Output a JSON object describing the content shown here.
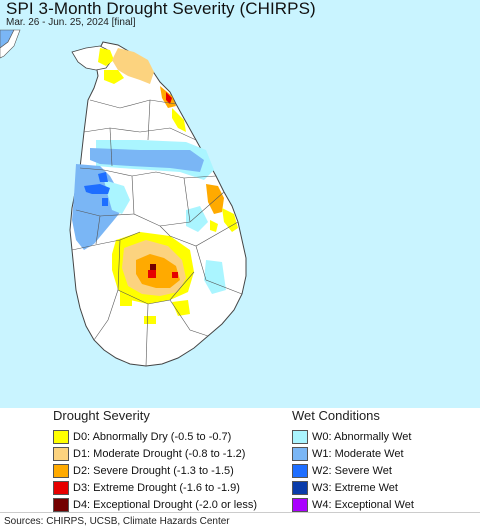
{
  "header": {
    "title": "SPI 3-Month Drought Severity (CHIRPS)",
    "subtitle": "Mar. 26 - Jun. 25, 2024 [final]"
  },
  "legend": {
    "drought_title": "Drought Severity",
    "drought_items": [
      {
        "label": "D0: Abnormally Dry (-0.5 to -0.7)",
        "color": "#ffff00"
      },
      {
        "label": "D1: Moderate Drought (-0.8 to -1.2)",
        "color": "#fcd37f"
      },
      {
        "label": "D2: Severe Drought (-1.3 to -1.5)",
        "color": "#ffaa00"
      },
      {
        "label": "D3: Extreme Drought (-1.6 to -1.9)",
        "color": "#e60000"
      },
      {
        "label": "D4: Exceptional Drought (-2.0 or less)",
        "color": "#730000"
      }
    ],
    "wet_title": "Wet Conditions",
    "wet_items": [
      {
        "label": "W0: Abnormally Wet",
        "color": "#aaf5ff"
      },
      {
        "label": "W1: Moderate Wet",
        "color": "#7ab6f5"
      },
      {
        "label": "W2: Severe Wet",
        "color": "#1e6eff"
      },
      {
        "label": "W3: Extreme Wet",
        "color": "#0a3caa"
      },
      {
        "label": "W4: Exceptional Wet",
        "color": "#aa00ff"
      }
    ]
  },
  "footer": {
    "source": "Sources: CHIRPS, UCSB, Climate Hazards Center"
  },
  "map": {
    "ocean_color": "#c9f4ff",
    "land_color": "#ffffff",
    "border_color": "#555555"
  }
}
